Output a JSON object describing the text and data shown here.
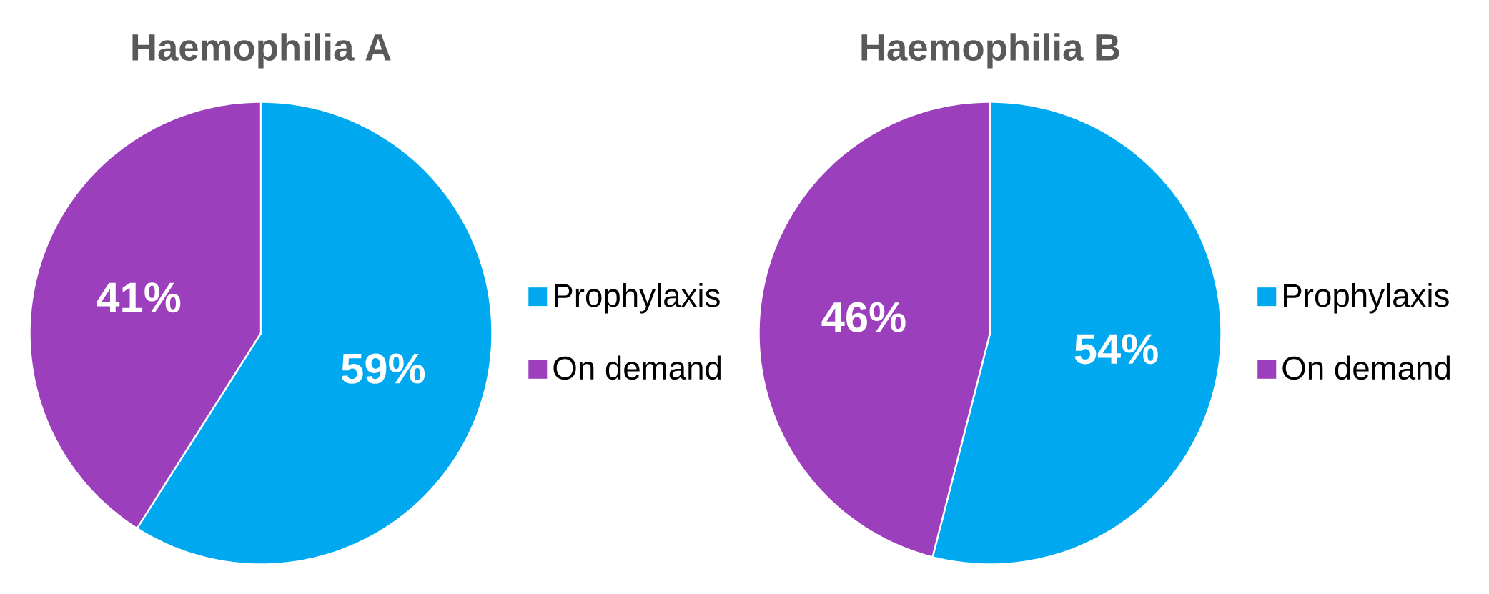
{
  "chart_data": [
    {
      "type": "pie",
      "title": "Haemophilia A",
      "categories": [
        "Prophylaxis",
        "On demand"
      ],
      "values": [
        59,
        41
      ],
      "colors": [
        "#00a9ef",
        "#9c3fbd"
      ],
      "value_labels": [
        "59%",
        "41%"
      ],
      "legend": "right"
    },
    {
      "type": "pie",
      "title": "Haemophilia B",
      "categories": [
        "Prophylaxis",
        "On demand"
      ],
      "values": [
        54,
        46
      ],
      "colors": [
        "#00a9ef",
        "#9c3fbd"
      ],
      "value_labels": [
        "54%",
        "46%"
      ],
      "legend": "right"
    }
  ]
}
